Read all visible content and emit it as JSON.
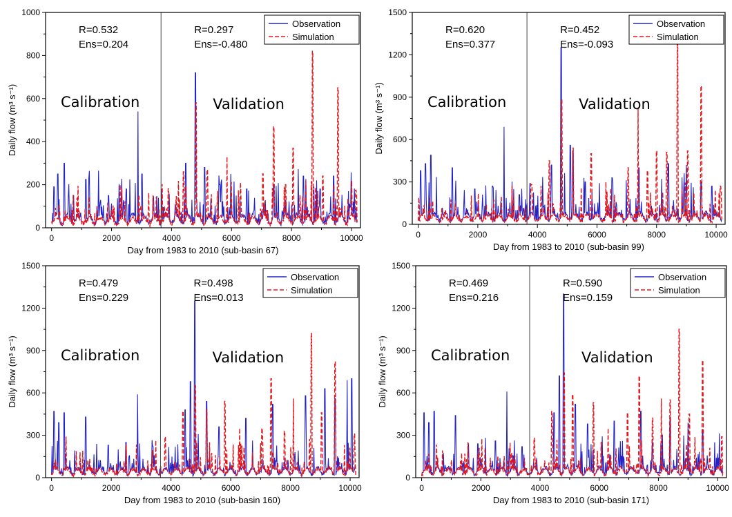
{
  "colors": {
    "observation": "#2323c8",
    "simulation": "#e4161c",
    "axis": "#000000",
    "divider": "#444444"
  },
  "chart_data": [
    {
      "type": "line",
      "xlabel": "Day from 1983 to 2010 (sub-basin 67)",
      "ylabel": "Daily flow (m³ s⁻¹)",
      "xlim": [
        -200,
        10300
      ],
      "ylim": [
        0,
        1000
      ],
      "xticks": [
        0,
        2000,
        4000,
        6000,
        8000,
        10000
      ],
      "yticks": [
        0,
        200,
        400,
        600,
        800,
        1000
      ],
      "split_day": 3650,
      "region_labels": [
        "Calibration",
        "Validation"
      ],
      "calibration_stats": [
        "R=0.532",
        "Ens=0.204"
      ],
      "validation_stats": [
        "R=0.297",
        "Ens=-0.480"
      ],
      "legend": [
        "Observation",
        "Simulation"
      ],
      "legend_position": "top-right",
      "series": [
        {
          "name": "Observation",
          "base": 45,
          "peaks": [
            [
              80,
              190
            ],
            [
              200,
              250
            ],
            [
              420,
              300
            ],
            [
              1150,
              225
            ],
            [
              1900,
              150
            ],
            [
              2500,
              180
            ],
            [
              2880,
              540
            ],
            [
              3020,
              250
            ],
            [
              3400,
              145
            ],
            [
              4480,
              300
            ],
            [
              4800,
              720
            ],
            [
              5100,
              280
            ],
            [
              5600,
              200
            ],
            [
              6500,
              180
            ],
            [
              7400,
              200
            ],
            [
              8400,
              240
            ],
            [
              8950,
              180
            ],
            [
              9400,
              240
            ],
            [
              9900,
              170
            ]
          ]
        },
        {
          "name": "Simulation",
          "base": 40,
          "peaks": [
            [
              2900,
              150
            ],
            [
              3900,
              180
            ],
            [
              4400,
              260
            ],
            [
              4820,
              580
            ],
            [
              5200,
              270
            ],
            [
              5850,
              330
            ],
            [
              6300,
              210
            ],
            [
              7050,
              250
            ],
            [
              7400,
              470
            ],
            [
              7800,
              200
            ],
            [
              8050,
              370
            ],
            [
              8700,
              820
            ],
            [
              9050,
              240
            ],
            [
              9550,
              650
            ],
            [
              10150,
              175
            ]
          ]
        }
      ]
    },
    {
      "type": "line",
      "xlabel": "Day from 1983 to 2010 (sub-basin 99)",
      "ylabel": "Daily flow (m³ s⁻¹)",
      "xlim": [
        -200,
        10300
      ],
      "ylim": [
        0,
        1500
      ],
      "xticks": [
        0,
        2000,
        4000,
        6000,
        8000,
        10000
      ],
      "yticks": [
        0,
        300,
        600,
        900,
        1200,
        1500
      ],
      "split_day": 3650,
      "region_labels": [
        "Calibration",
        "Validation"
      ],
      "calibration_stats": [
        "R=0.620",
        "Ens=0.377"
      ],
      "validation_stats": [
        "R=0.452",
        "Ens=-0.093"
      ],
      "legend": [
        "Observation",
        "Simulation"
      ],
      "legend_position": "top-right",
      "series": [
        {
          "name": "Observation",
          "base": 60,
          "peaks": [
            [
              80,
              380
            ],
            [
              250,
              430
            ],
            [
              420,
              490
            ],
            [
              1150,
              400
            ],
            [
              1900,
              250
            ],
            [
              2500,
              270
            ],
            [
              2880,
              690
            ],
            [
              3400,
              210
            ],
            [
              4480,
              420
            ],
            [
              4800,
              1250
            ],
            [
              5100,
              560
            ],
            [
              5200,
              520
            ],
            [
              5600,
              300
            ],
            [
              6500,
              330
            ],
            [
              7400,
              400
            ],
            [
              8400,
              430
            ],
            [
              9000,
              420
            ],
            [
              9500,
              300
            ],
            [
              9850,
              270
            ]
          ]
        },
        {
          "name": "Simulation",
          "base": 50,
          "peaks": [
            [
              3800,
              280
            ],
            [
              4400,
              450
            ],
            [
              4820,
              880
            ],
            [
              5200,
              540
            ],
            [
              5800,
              500
            ],
            [
              6300,
              300
            ],
            [
              7050,
              400
            ],
            [
              7380,
              820
            ],
            [
              7700,
              380
            ],
            [
              8000,
              520
            ],
            [
              8350,
              510
            ],
            [
              8700,
              1270
            ],
            [
              9050,
              520
            ],
            [
              9500,
              980
            ],
            [
              10150,
              270
            ]
          ]
        }
      ]
    },
    {
      "type": "line",
      "xlabel": "Day from 1983 to 2010 (sub-basin 160)",
      "ylabel": "Daily flow (m³ s⁻¹)",
      "xlim": [
        -200,
        10300
      ],
      "ylim": [
        0,
        1500
      ],
      "xticks": [
        0,
        2000,
        4000,
        6000,
        8000,
        10000
      ],
      "yticks": [
        0,
        300,
        600,
        900,
        1200,
        1500
      ],
      "split_day": 3650,
      "region_labels": [
        "Calibration",
        "Validation"
      ],
      "calibration_stats": [
        "R=0.479",
        "Ens=0.229"
      ],
      "validation_stats": [
        "R=0.498",
        "Ens=0.013"
      ],
      "legend": [
        "Observation",
        "Simulation"
      ],
      "legend_position": "top-right",
      "series": [
        {
          "name": "Observation",
          "base": 50,
          "peaks": [
            [
              80,
              470
            ],
            [
              250,
              390
            ],
            [
              420,
              460
            ],
            [
              1150,
              430
            ],
            [
              1900,
              230
            ],
            [
              2500,
              250
            ],
            [
              2880,
              590
            ],
            [
              3400,
              220
            ],
            [
              4480,
              480
            ],
            [
              4650,
              680
            ],
            [
              4800,
              1250
            ],
            [
              5200,
              540
            ],
            [
              5600,
              360
            ],
            [
              6500,
              420
            ],
            [
              7400,
              520
            ],
            [
              8500,
              580
            ],
            [
              9150,
              630
            ],
            [
              9500,
              560
            ],
            [
              9900,
              690
            ],
            [
              10050,
              700
            ]
          ]
        },
        {
          "name": "Simulation",
          "base": 50,
          "peaks": [
            [
              3800,
              290
            ],
            [
              4400,
              470
            ],
            [
              4820,
              650
            ],
            [
              5200,
              480
            ],
            [
              5800,
              540
            ],
            [
              6300,
              350
            ],
            [
              7050,
              350
            ],
            [
              7350,
              700
            ],
            [
              7800,
              330
            ],
            [
              8100,
              560
            ],
            [
              8700,
              1020
            ],
            [
              9050,
              460
            ],
            [
              9500,
              820
            ],
            [
              10150,
              310
            ]
          ]
        }
      ]
    },
    {
      "type": "line",
      "xlabel": "Day from 1983 to 2010 (sub-basin 171)",
      "ylabel": "Daily flow (m³ s⁻¹)",
      "xlim": [
        -200,
        10300
      ],
      "ylim": [
        0,
        1500
      ],
      "xticks": [
        0,
        2000,
        4000,
        6000,
        8000,
        10000
      ],
      "yticks": [
        0,
        300,
        600,
        900,
        1200,
        1500
      ],
      "split_day": 3650,
      "region_labels": [
        "Calibration",
        "Validation"
      ],
      "calibration_stats": [
        "R=0.469",
        "Ens=0.216"
      ],
      "validation_stats": [
        "R=0.590",
        "Ens=0.159"
      ],
      "legend": [
        "Observation",
        "Simulation"
      ],
      "legend_position": "top-right",
      "series": [
        {
          "name": "Observation",
          "base": 55,
          "peaks": [
            [
              80,
              460
            ],
            [
              250,
              390
            ],
            [
              420,
              470
            ],
            [
              1150,
              440
            ],
            [
              1900,
              240
            ],
            [
              2500,
              260
            ],
            [
              2880,
              610
            ],
            [
              3400,
              220
            ],
            [
              4480,
              460
            ],
            [
              4650,
              720
            ],
            [
              4800,
              1300
            ],
            [
              5200,
              520
            ],
            [
              5600,
              380
            ],
            [
              6500,
              400
            ],
            [
              7400,
              470
            ],
            [
              8400,
              430
            ],
            [
              9000,
              390
            ],
            [
              9500,
              340
            ],
            [
              9900,
              250
            ]
          ]
        },
        {
          "name": "Simulation",
          "base": 50,
          "peaks": [
            [
              3800,
              280
            ],
            [
              4400,
              470
            ],
            [
              4820,
              740
            ],
            [
              5100,
              590
            ],
            [
              5800,
              530
            ],
            [
              6300,
              350
            ],
            [
              6950,
              460
            ],
            [
              7350,
              720
            ],
            [
              7800,
              420
            ],
            [
              8100,
              560
            ],
            [
              8400,
              550
            ],
            [
              8700,
              1050
            ],
            [
              9050,
              450
            ],
            [
              9500,
              830
            ],
            [
              10150,
              290
            ]
          ]
        }
      ]
    }
  ]
}
